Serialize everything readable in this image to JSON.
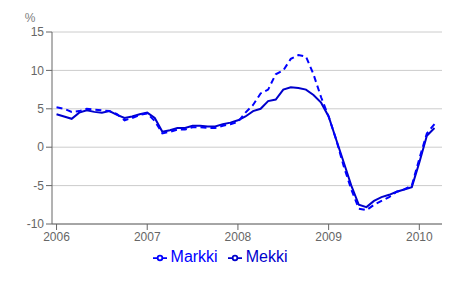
{
  "chart_data": {
    "type": "line",
    "ylabel": "%",
    "x": [
      2006.0,
      2006.083,
      2006.167,
      2006.25,
      2006.333,
      2006.417,
      2006.5,
      2006.583,
      2006.667,
      2006.75,
      2006.833,
      2006.917,
      2007.0,
      2007.083,
      2007.167,
      2007.25,
      2007.333,
      2007.417,
      2007.5,
      2007.583,
      2007.667,
      2007.75,
      2007.833,
      2007.917,
      2008.0,
      2008.083,
      2008.167,
      2008.25,
      2008.333,
      2008.417,
      2008.5,
      2008.583,
      2008.667,
      2008.75,
      2008.833,
      2008.917,
      2009.0,
      2009.083,
      2009.167,
      2009.25,
      2009.333,
      2009.417,
      2009.5,
      2009.583,
      2009.667,
      2009.75,
      2009.833,
      2009.917,
      2010.0,
      2010.083,
      2010.167
    ],
    "series": [
      {
        "name": "Mekki",
        "color": "#0000CC",
        "line_style": "solid",
        "values": [
          4.3,
          4.0,
          3.7,
          4.5,
          4.8,
          4.6,
          4.5,
          4.7,
          4.2,
          3.8,
          4.0,
          4.3,
          4.5,
          3.8,
          2.0,
          2.2,
          2.5,
          2.5,
          2.8,
          2.8,
          2.7,
          2.7,
          3.0,
          3.2,
          3.5,
          4.0,
          4.7,
          5.0,
          6.0,
          6.2,
          7.5,
          7.8,
          7.7,
          7.5,
          6.8,
          5.8,
          4.0,
          1.0,
          -2.0,
          -5.0,
          -7.5,
          -7.8,
          -7.0,
          -6.5,
          -6.2,
          -5.8,
          -5.5,
          -5.2,
          -2.0,
          1.5,
          2.5
        ]
      },
      {
        "name": "Markki",
        "color": "#0000FF",
        "line_style": "dashed",
        "values": [
          5.2,
          5.0,
          4.6,
          4.7,
          5.0,
          4.9,
          4.8,
          4.7,
          4.3,
          3.5,
          3.8,
          4.2,
          4.4,
          3.4,
          1.8,
          2.0,
          2.3,
          2.3,
          2.6,
          2.6,
          2.5,
          2.5,
          2.8,
          3.0,
          3.3,
          4.5,
          5.5,
          7.0,
          7.5,
          9.5,
          10.0,
          11.5,
          12.0,
          11.8,
          9.5,
          6.5,
          4.0,
          1.0,
          -2.5,
          -5.5,
          -8.0,
          -8.2,
          -7.5,
          -7.0,
          -6.5,
          -5.8,
          -5.5,
          -5.0,
          -1.5,
          1.8,
          3.0
        ]
      }
    ],
    "xlim": [
      2005.95,
      2010.25
    ],
    "xticks": [
      2006,
      2007,
      2008,
      2009,
      2010
    ],
    "ylim": [
      -10,
      15
    ],
    "yticks": [
      -10,
      -5,
      0,
      5,
      10,
      15
    ],
    "grid": true,
    "legend": "bottom"
  }
}
